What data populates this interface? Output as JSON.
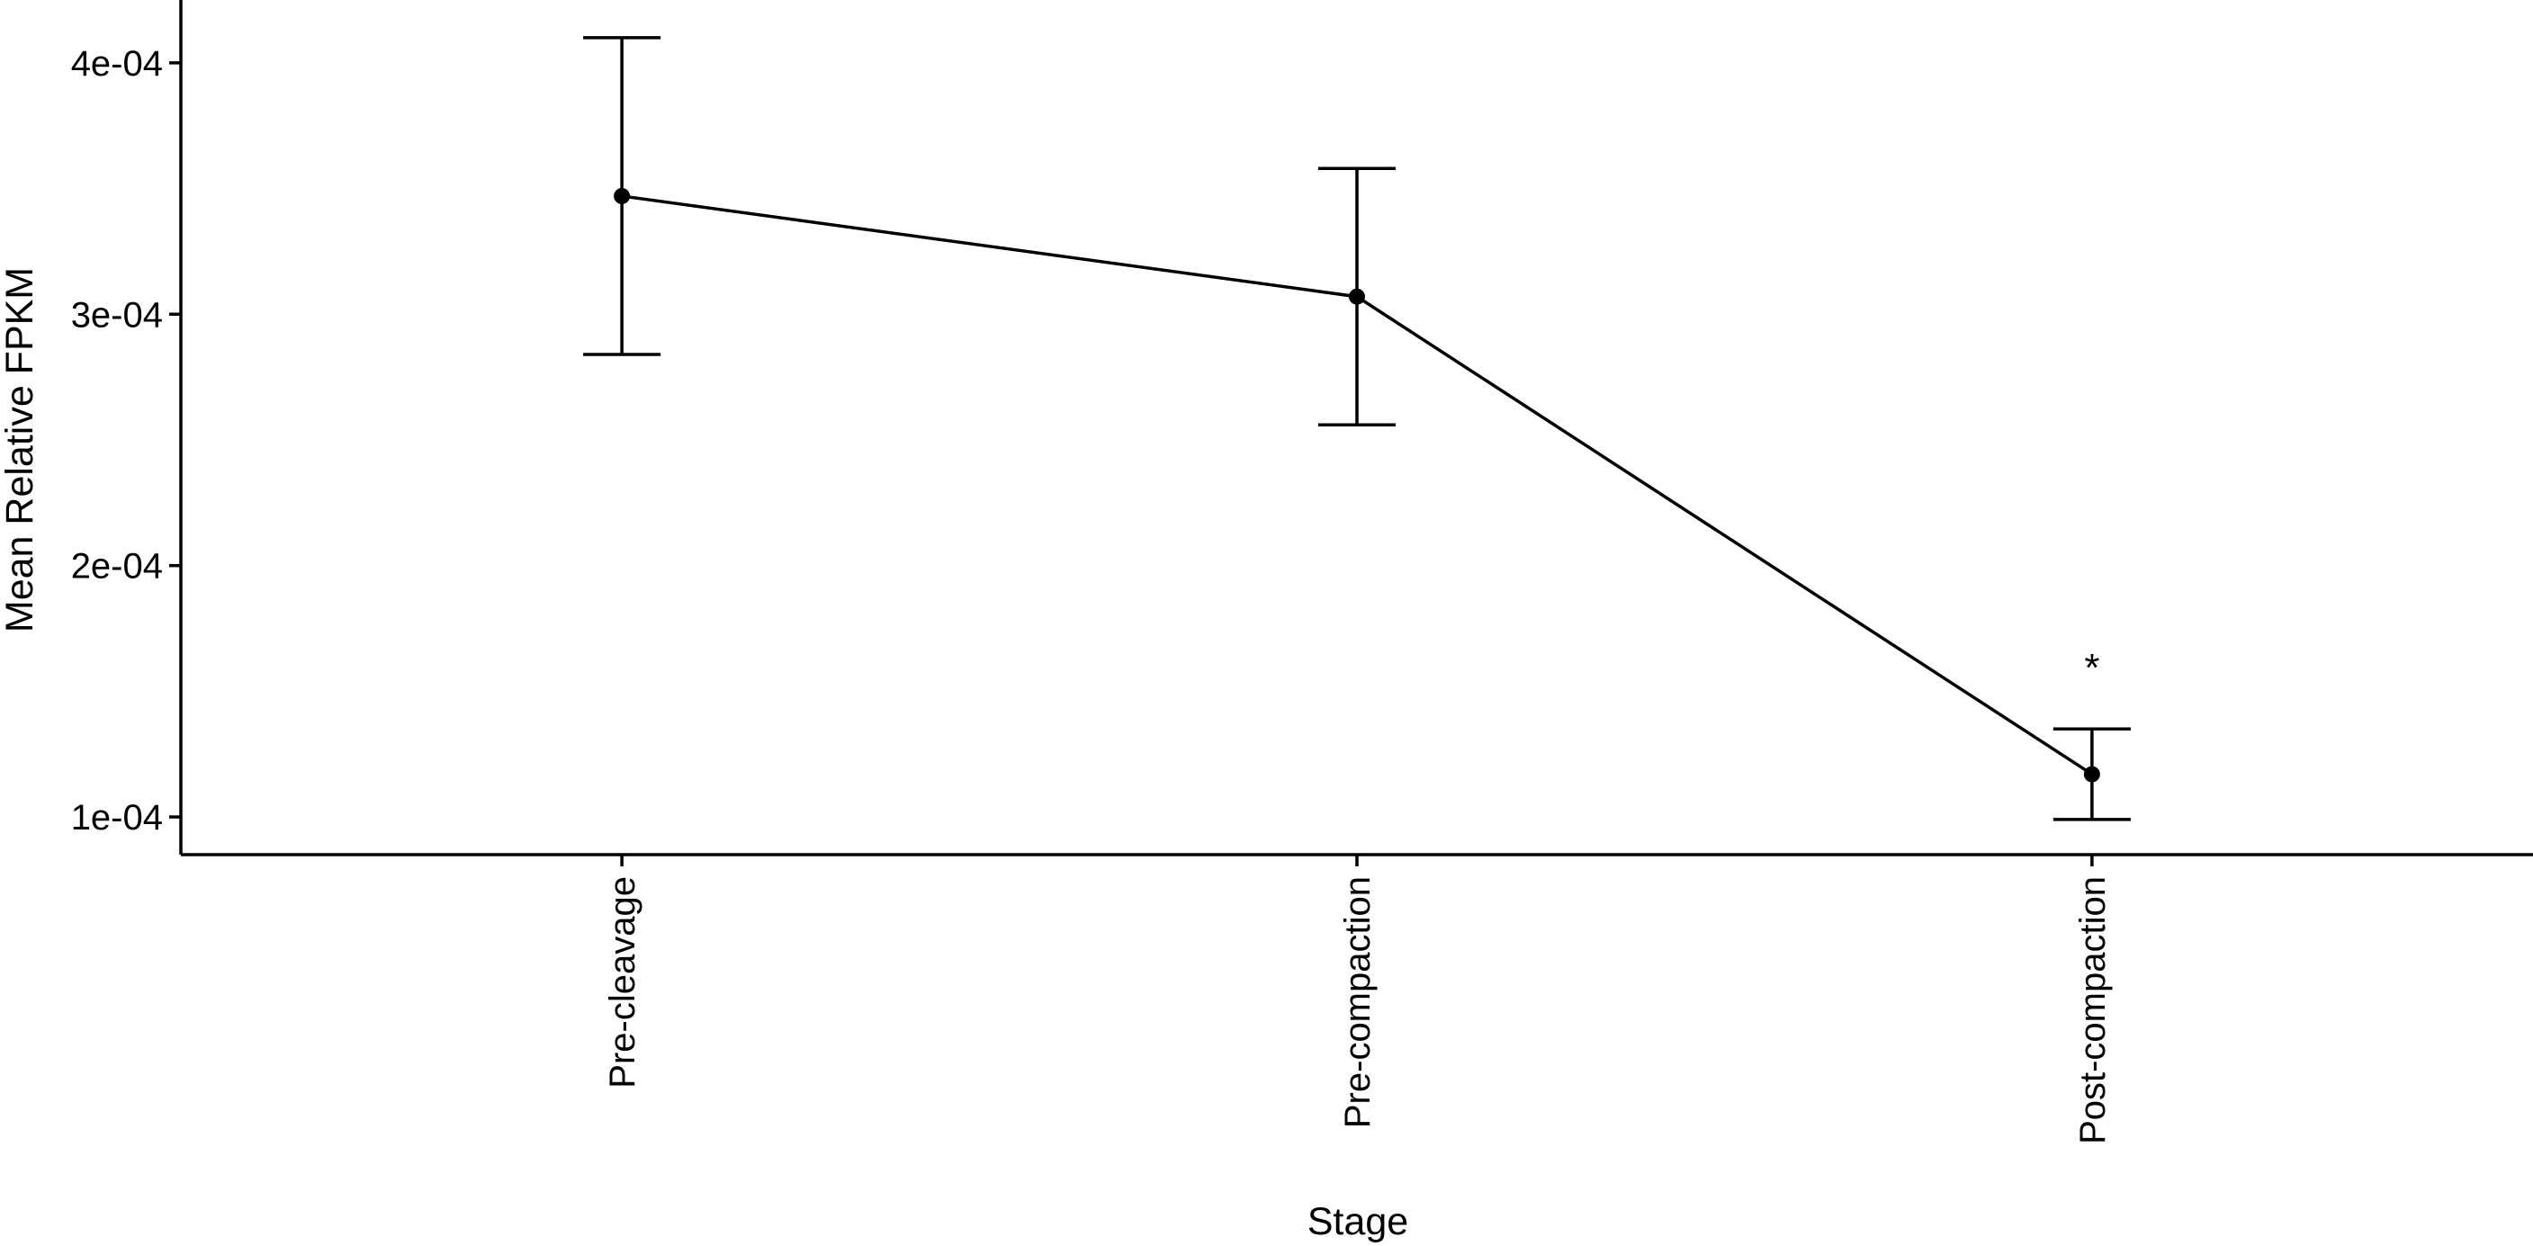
{
  "chart_data": {
    "type": "line",
    "x_label": "Stage",
    "y_label": "Mean Relative FPKM",
    "categories": [
      "Pre-cleavage",
      "Pre-compaction",
      "Post-compaction"
    ],
    "series": [
      {
        "color": "#000000",
        "values": [
          0.000347,
          0.000307,
          0.000117
        ],
        "errors": [
          6.3e-05,
          5.1e-05,
          1.8e-05
        ]
      }
    ],
    "ylim": [
      8.5e-05,
      0.000425
    ],
    "yticks": [
      {
        "value": 0.0001,
        "label": "1e-04"
      },
      {
        "value": 0.0002,
        "label": "2e-04"
      },
      {
        "value": 0.0003,
        "label": "3e-04"
      },
      {
        "value": 0.0004,
        "label": "4e-04"
      }
    ],
    "annotations": [
      {
        "text": "*",
        "category": "Post-compaction",
        "y": 0.000162
      }
    ],
    "grid": false
  }
}
